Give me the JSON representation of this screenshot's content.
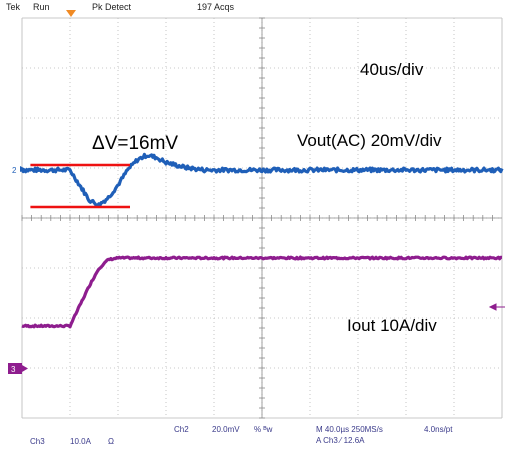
{
  "status": {
    "brand": "Tek",
    "mode": "Run",
    "acq_mode": "Pk Detect",
    "acq_count": "197 Acqs"
  },
  "annotations": {
    "timebase": "40us/div",
    "delta_v": "ΔV=16mV",
    "vout_scale": "Vout(AC) 20mV/div",
    "iout_scale": "Iout 10A/div"
  },
  "readouts": {
    "ch3_label": "Ch3",
    "ch3_scale": "10.0A",
    "ch3_coupling": "Ω",
    "ch2_label": "Ch2",
    "ch2_scale": "20.0mV",
    "ch2_extra": "% ᴮw",
    "horizontal": "M 40.0µs 250MS/s",
    "sample_interval": "4.0ns/pt",
    "trigger": "A  Ch3  ⁄  12.6A"
  },
  "markers": {
    "ch2": "2",
    "ch3": "3"
  },
  "colors": {
    "ch2": "#1f5fb8",
    "ch3": "#8e1d8e",
    "delta_lines": "#ee1111",
    "trigger": "#f08a24",
    "grid": "#b8b8b8"
  },
  "chart_data": {
    "type": "line",
    "xlabel": "",
    "ylabel": "",
    "x_units": "µs",
    "x_range": [
      -40,
      360
    ],
    "grid": true,
    "series": [
      {
        "name": "Vout(AC)",
        "channel": "Ch2",
        "units": "mV",
        "x": [
          -40,
          0,
          8,
          16,
          24,
          32,
          40,
          48,
          56,
          64,
          72,
          80,
          96,
          112,
          160,
          360
        ],
        "y": [
          0,
          0,
          -6,
          -12,
          -14,
          -11,
          -6,
          0,
          4,
          6,
          5,
          3,
          1,
          0,
          0,
          0
        ]
      },
      {
        "name": "Iout",
        "channel": "Ch3",
        "units": "A",
        "x": [
          -40,
          0,
          8,
          16,
          24,
          32,
          40,
          360
        ],
        "y": [
          0,
          0,
          4,
          8,
          11.5,
          13.3,
          13.6,
          13.6
        ]
      }
    ],
    "delta_v_mV": 16
  }
}
